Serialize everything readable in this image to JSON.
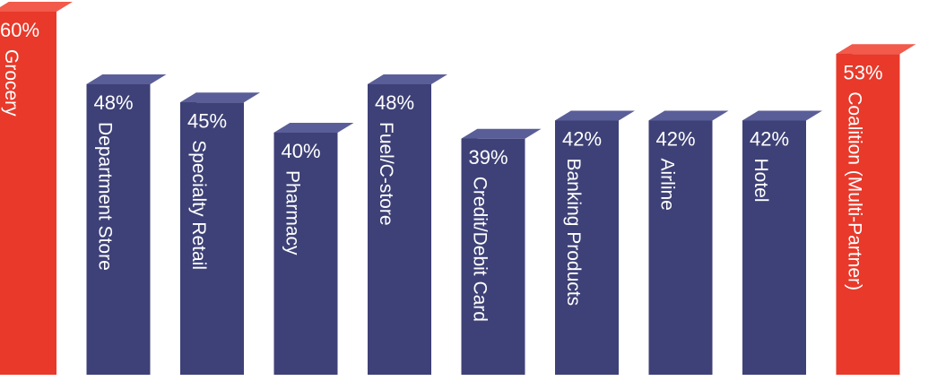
{
  "chart_data": {
    "type": "bar",
    "title": "",
    "xlabel": "",
    "ylabel": "",
    "ylim": [
      0,
      60
    ],
    "grid": false,
    "legend": "none",
    "categories": [
      "Grocery",
      "Department Store",
      "Specialty Retail",
      "Pharmacy",
      "Fuel/C-store",
      "Credit/Debit Card",
      "Banking Products",
      "Airline",
      "Hotel",
      "Coalition (Multi-Partner)"
    ],
    "values": [
      60,
      48,
      45,
      40,
      48,
      39,
      42,
      42,
      42,
      53
    ],
    "value_labels": [
      "60%",
      "48%",
      "45%",
      "40%",
      "48%",
      "39%",
      "42%",
      "42%",
      "42%",
      "53%"
    ],
    "highlighted": [
      true,
      false,
      false,
      false,
      false,
      false,
      false,
      false,
      false,
      true
    ],
    "colors": {
      "highlight_front": "#e8392a",
      "highlight_side": "#b8281d",
      "highlight_top": "#f25a4b",
      "normal_front": "#3e4177",
      "normal_side": "#2a2c58",
      "normal_top": "#5a5e98",
      "label_text": "#ffffff"
    }
  }
}
